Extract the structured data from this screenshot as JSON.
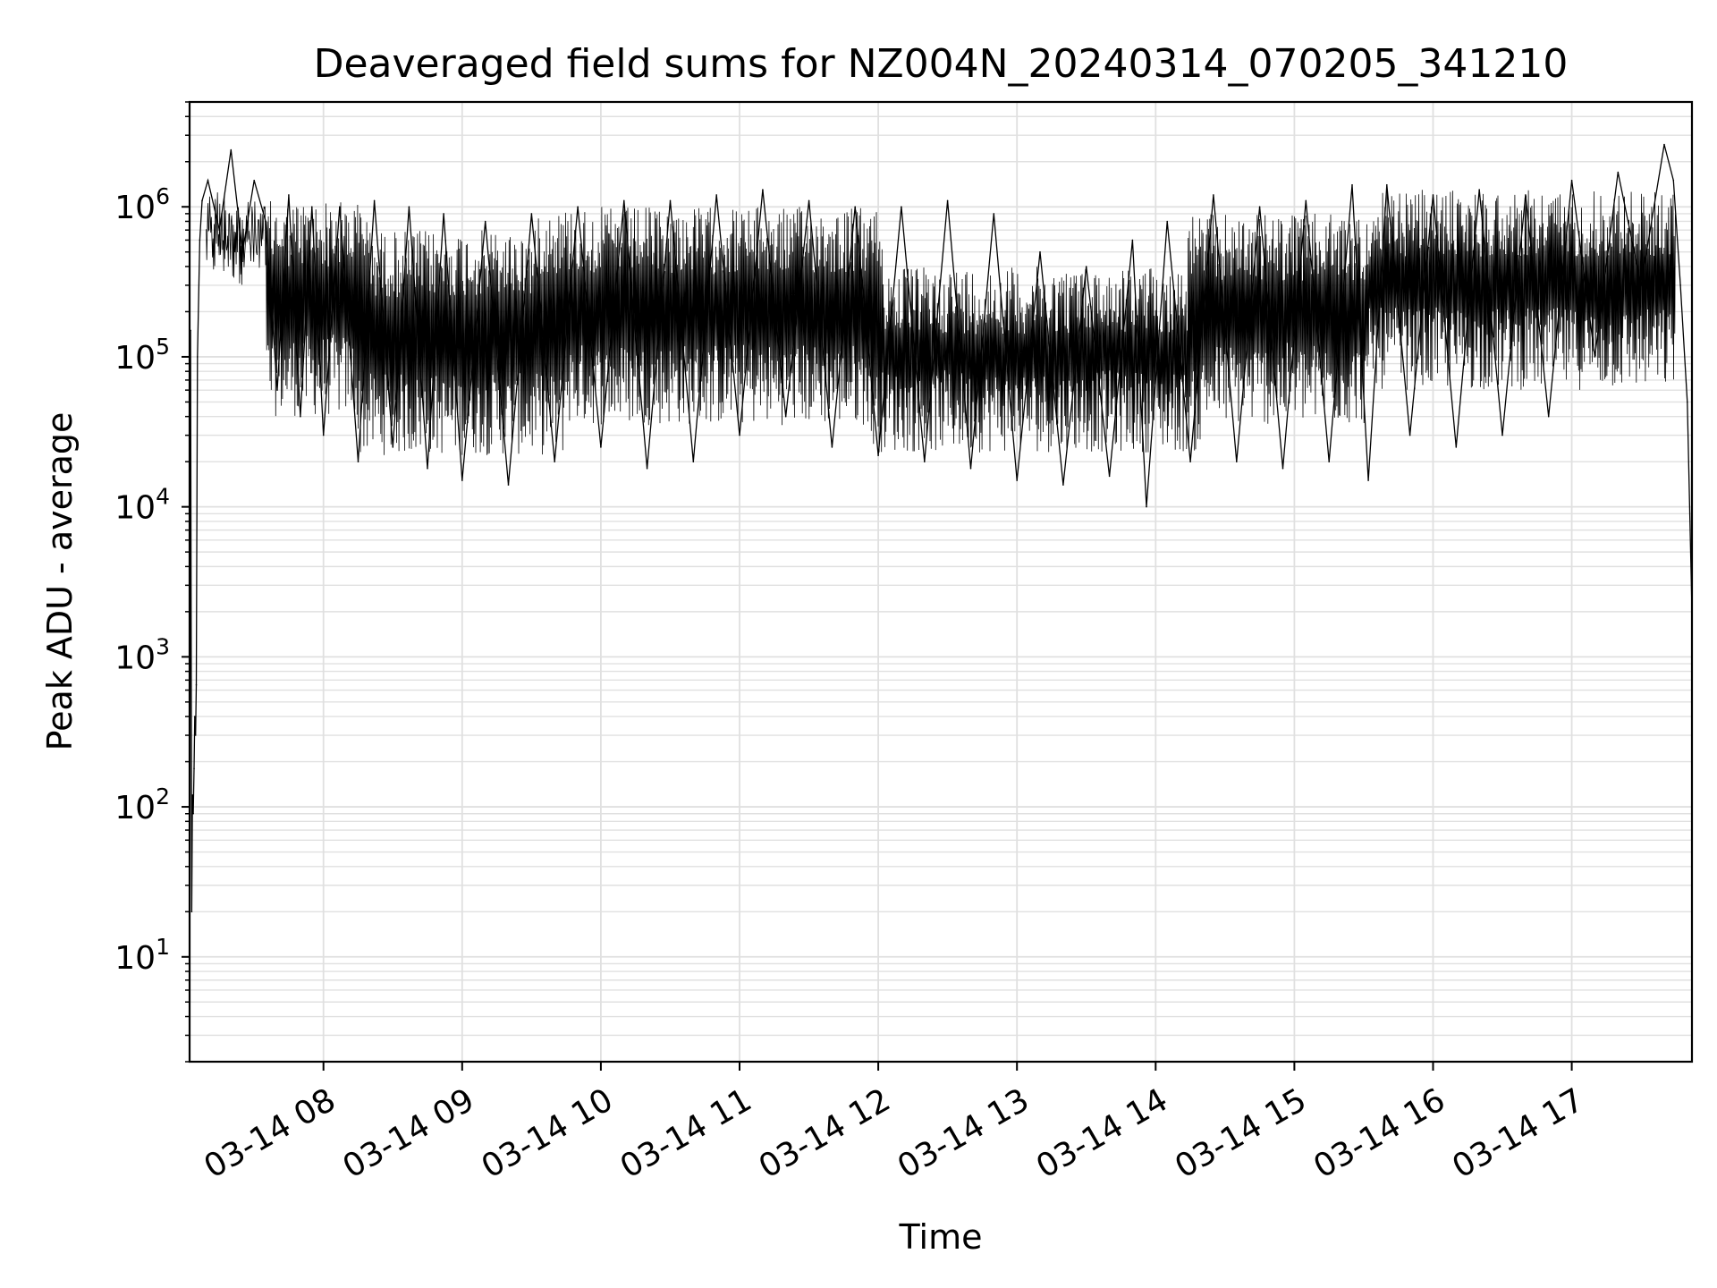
{
  "chart_data": {
    "type": "line",
    "title": "Deaveraged field sums for NZ004N_20240314_070205_341210",
    "xlabel": "Time",
    "ylabel": "Peak ADU - average",
    "y_scale": "log",
    "ylim": [
      2,
      5000000
    ],
    "xlim": [
      "2024-03-14 07:02:05",
      "2024-03-14 17:52:00"
    ],
    "grid": true,
    "line_color": "#000000",
    "grid_color": "#e0e0e0",
    "x_ticks": [
      {
        "t": "2024-03-14 08:00",
        "label": "03-14 08"
      },
      {
        "t": "2024-03-14 09:00",
        "label": "03-14 09"
      },
      {
        "t": "2024-03-14 10:00",
        "label": "03-14 10"
      },
      {
        "t": "2024-03-14 11:00",
        "label": "03-14 11"
      },
      {
        "t": "2024-03-14 12:00",
        "label": "03-14 12"
      },
      {
        "t": "2024-03-14 13:00",
        "label": "03-14 13"
      },
      {
        "t": "2024-03-14 14:00",
        "label": "03-14 14"
      },
      {
        "t": "2024-03-14 15:00",
        "label": "03-14 15"
      },
      {
        "t": "2024-03-14 16:00",
        "label": "03-14 16"
      },
      {
        "t": "2024-03-14 17:00",
        "label": "03-14 17"
      }
    ],
    "y_ticks": [
      {
        "value": 10,
        "base": "10",
        "exp": "1"
      },
      {
        "value": 100,
        "base": "10",
        "exp": "2"
      },
      {
        "value": 1000,
        "base": "10",
        "exp": "3"
      },
      {
        "value": 10000,
        "base": "10",
        "exp": "4"
      },
      {
        "value": 100000,
        "base": "10",
        "exp": "5"
      },
      {
        "value": 1000000,
        "base": "10",
        "exp": "6"
      }
    ],
    "series": [
      {
        "points": [
          [
            "2024-03-14 07:02:05",
            4
          ],
          [
            "2024-03-14 07:02:30",
            150000
          ],
          [
            "2024-03-14 07:03:00",
            20
          ],
          [
            "2024-03-14 07:03:20",
            120
          ],
          [
            "2024-03-14 07:03:40",
            90
          ],
          [
            "2024-03-14 07:04:00",
            180
          ],
          [
            "2024-03-14 07:04:20",
            400
          ],
          [
            "2024-03-14 07:04:40",
            300
          ],
          [
            "2024-03-14 07:05:00",
            650
          ],
          [
            "2024-03-14 07:05:30",
            100000
          ],
          [
            "2024-03-14 07:06:30",
            600000
          ],
          [
            "2024-03-14 07:07:30",
            1100000
          ],
          [
            "2024-03-14 07:10:00",
            1500000
          ],
          [
            "2024-03-14 07:15:00",
            700000
          ],
          [
            "2024-03-14 07:20:00",
            2400000
          ],
          [
            "2024-03-14 07:25:00",
            500000
          ],
          [
            "2024-03-14 07:30:00",
            1500000
          ],
          [
            "2024-03-14 07:35:00",
            800000
          ],
          [
            "2024-03-14 07:40:00",
            60000
          ],
          [
            "2024-03-14 07:45:00",
            1200000
          ],
          [
            "2024-03-14 07:50:00",
            40000
          ],
          [
            "2024-03-14 07:55:00",
            1000000
          ],
          [
            "2024-03-14 08:00:00",
            30000
          ],
          [
            "2024-03-14 08:07:00",
            1000000
          ],
          [
            "2024-03-14 08:15:00",
            20000
          ],
          [
            "2024-03-14 08:22:00",
            1100000
          ],
          [
            "2024-03-14 08:30:00",
            25000
          ],
          [
            "2024-03-14 08:37:00",
            1000000
          ],
          [
            "2024-03-14 08:45:00",
            18000
          ],
          [
            "2024-03-14 08:52:00",
            900000
          ],
          [
            "2024-03-14 09:00:00",
            15000
          ],
          [
            "2024-03-14 09:10:00",
            800000
          ],
          [
            "2024-03-14 09:20:00",
            14000
          ],
          [
            "2024-03-14 09:30:00",
            900000
          ],
          [
            "2024-03-14 09:40:00",
            20000
          ],
          [
            "2024-03-14 09:50:00",
            1000000
          ],
          [
            "2024-03-14 10:00:00",
            25000
          ],
          [
            "2024-03-14 10:10:00",
            1100000
          ],
          [
            "2024-03-14 10:20:00",
            18000
          ],
          [
            "2024-03-14 10:30:00",
            1100000
          ],
          [
            "2024-03-14 10:40:00",
            20000
          ],
          [
            "2024-03-14 10:50:00",
            1200000
          ],
          [
            "2024-03-14 11:00:00",
            30000
          ],
          [
            "2024-03-14 11:10:00",
            1300000
          ],
          [
            "2024-03-14 11:20:00",
            40000
          ],
          [
            "2024-03-14 11:30:00",
            1100000
          ],
          [
            "2024-03-14 11:40:00",
            25000
          ],
          [
            "2024-03-14 11:50:00",
            1000000
          ],
          [
            "2024-03-14 12:00:00",
            22000
          ],
          [
            "2024-03-14 12:10:00",
            1000000
          ],
          [
            "2024-03-14 12:20:00",
            20000
          ],
          [
            "2024-03-14 12:30:00",
            1100000
          ],
          [
            "2024-03-14 12:40:00",
            18000
          ],
          [
            "2024-03-14 12:50:00",
            900000
          ],
          [
            "2024-03-14 13:00:00",
            15000
          ],
          [
            "2024-03-14 13:10:00",
            500000
          ],
          [
            "2024-03-14 13:20:00",
            14000
          ],
          [
            "2024-03-14 13:30:00",
            400000
          ],
          [
            "2024-03-14 13:40:00",
            16000
          ],
          [
            "2024-03-14 13:50:00",
            600000
          ],
          [
            "2024-03-14 13:56:00",
            10000
          ],
          [
            "2024-03-14 14:05:00",
            800000
          ],
          [
            "2024-03-14 14:15:00",
            20000
          ],
          [
            "2024-03-14 14:25:00",
            1200000
          ],
          [
            "2024-03-14 14:35:00",
            20000
          ],
          [
            "2024-03-14 14:45:00",
            1000000
          ],
          [
            "2024-03-14 14:55:00",
            18000
          ],
          [
            "2024-03-14 15:05:00",
            1100000
          ],
          [
            "2024-03-14 15:15:00",
            20000
          ],
          [
            "2024-03-14 15:25:00",
            1400000
          ],
          [
            "2024-03-14 15:32:00",
            15000
          ],
          [
            "2024-03-14 15:40:00",
            1400000
          ],
          [
            "2024-03-14 15:50:00",
            30000
          ],
          [
            "2024-03-14 16:00:00",
            1200000
          ],
          [
            "2024-03-14 16:10:00",
            25000
          ],
          [
            "2024-03-14 16:20:00",
            1300000
          ],
          [
            "2024-03-14 16:30:00",
            30000
          ],
          [
            "2024-03-14 16:40:00",
            1200000
          ],
          [
            "2024-03-14 16:50:00",
            40000
          ],
          [
            "2024-03-14 17:00:00",
            1500000
          ],
          [
            "2024-03-14 17:10:00",
            100000
          ],
          [
            "2024-03-14 17:20:00",
            1700000
          ],
          [
            "2024-03-14 17:30:00",
            300000
          ],
          [
            "2024-03-14 17:40:00",
            2600000
          ],
          [
            "2024-03-14 17:44:00",
            1500000
          ],
          [
            "2024-03-14 17:47:00",
            300000
          ],
          [
            "2024-03-14 17:50:00",
            50000
          ],
          [
            "2024-03-14 17:52:00",
            2000
          ]
        ]
      }
    ]
  }
}
